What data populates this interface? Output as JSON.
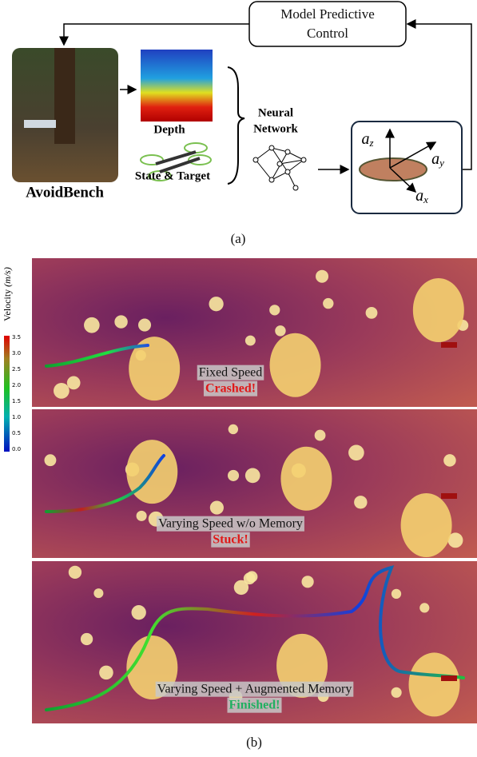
{
  "figure_a": {
    "mpc_label": [
      "Model Predictive",
      "Control"
    ],
    "simulator_label": "AvoidBench",
    "depth_label": "Depth",
    "state_label": "State & Target",
    "network_label": [
      "Neural",
      "Network"
    ],
    "axes": [
      {
        "base": "a",
        "sub": "z"
      },
      {
        "base": "a",
        "sub": "y"
      },
      {
        "base": "a",
        "sub": "x"
      }
    ],
    "caption": "(a)"
  },
  "figure_b": {
    "colorbar": {
      "title": "Velocity",
      "unit": "(m/s)",
      "ticks": [
        "0.0",
        "0.5",
        "1.0",
        "1.5",
        "2.0",
        "2.5",
        "3.0",
        "3.5"
      ]
    },
    "panels": [
      {
        "label": "Fixed Speed",
        "status": "Crashed!"
      },
      {
        "label": "Varying Speed w/o Memory",
        "status": "Stuck!"
      },
      {
        "label": "Varying Speed + Augmented Memory",
        "status": "Finished!"
      }
    ],
    "caption": "(b)"
  }
}
